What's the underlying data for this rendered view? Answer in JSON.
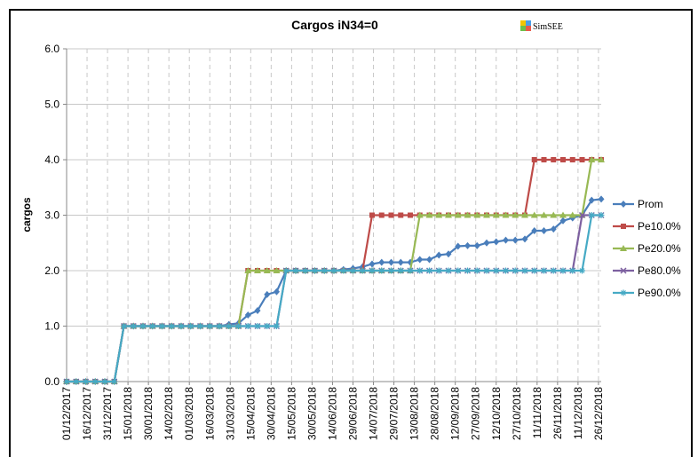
{
  "chart_data": {
    "type": "line",
    "title": "Cargos iN34=0",
    "logo": "SimSEE",
    "ylabel": "cargos",
    "x": [
      "01/12/2017",
      "08/12/2017",
      "15/12/2017",
      "22/12/2017",
      "29/12/2017",
      "05/01/2018",
      "12/01/2018",
      "19/01/2018",
      "26/01/2018",
      "02/02/2018",
      "09/02/2018",
      "16/02/2018",
      "23/02/2018",
      "02/03/2018",
      "09/03/2018",
      "16/03/2018",
      "23/03/2018",
      "30/03/2018",
      "06/04/2018",
      "13/04/2018",
      "20/04/2018",
      "27/04/2018",
      "04/05/2018",
      "11/05/2018",
      "18/05/2018",
      "25/05/2018",
      "01/06/2018",
      "08/06/2018",
      "15/06/2018",
      "22/06/2018",
      "29/06/2018",
      "06/07/2018",
      "13/07/2018",
      "20/07/2018",
      "27/07/2018",
      "03/08/2018",
      "10/08/2018",
      "17/08/2018",
      "24/08/2018",
      "31/08/2018",
      "07/09/2018",
      "14/09/2018",
      "21/09/2018",
      "28/09/2018",
      "05/10/2018",
      "12/10/2018",
      "19/10/2018",
      "26/10/2018",
      "02/11/2018",
      "09/11/2018",
      "16/11/2018",
      "23/11/2018",
      "30/11/2018",
      "07/12/2018",
      "14/12/2018",
      "21/12/2018",
      "28/12/2018"
    ],
    "series": [
      {
        "name": "Prom",
        "color": "#4a7ebb",
        "marker": "diamond",
        "values": [
          0,
          0,
          0,
          0,
          0,
          0,
          1,
          1,
          1,
          1,
          1,
          1,
          1,
          1,
          1,
          1,
          1,
          1.03,
          1.05,
          1.2,
          1.28,
          1.57,
          1.62,
          2,
          2,
          2,
          2,
          2,
          2,
          2.02,
          2.04,
          2.07,
          2.12,
          2.15,
          2.15,
          2.15,
          2.15,
          2.2,
          2.2,
          2.28,
          2.3,
          2.44,
          2.45,
          2.45,
          2.5,
          2.52,
          2.55,
          2.55,
          2.57,
          2.72,
          2.72,
          2.75,
          2.9,
          2.95,
          3,
          3.27,
          3.29
        ]
      },
      {
        "name": "Pe10.0%",
        "color": "#be4b48",
        "marker": "square",
        "values": [
          0,
          0,
          0,
          0,
          0,
          0,
          1,
          1,
          1,
          1,
          1,
          1,
          1,
          1,
          1,
          1,
          1,
          1,
          1,
          2,
          2,
          2,
          2,
          2,
          2,
          2,
          2,
          2,
          2,
          2,
          2,
          2,
          3,
          3,
          3,
          3,
          3,
          3,
          3,
          3,
          3,
          3,
          3,
          3,
          3,
          3,
          3,
          3,
          3,
          4,
          4,
          4,
          4,
          4,
          4,
          4,
          4
        ]
      },
      {
        "name": "Pe20.0%",
        "color": "#98b954",
        "marker": "triangle",
        "values": [
          0,
          0,
          0,
          0,
          0,
          0,
          1,
          1,
          1,
          1,
          1,
          1,
          1,
          1,
          1,
          1,
          1,
          1,
          1,
          2,
          2,
          2,
          2,
          2,
          2,
          2,
          2,
          2,
          2,
          2,
          2,
          2,
          2,
          2,
          2,
          2,
          2,
          3,
          3,
          3,
          3,
          3,
          3,
          3,
          3,
          3,
          3,
          3,
          3,
          3,
          3,
          3,
          3,
          3,
          3,
          4,
          4
        ]
      },
      {
        "name": "Pe80.0%",
        "color": "#7d60a0",
        "marker": "x",
        "values": [
          0,
          0,
          0,
          0,
          0,
          0,
          1,
          1,
          1,
          1,
          1,
          1,
          1,
          1,
          1,
          1,
          1,
          1,
          1,
          1,
          1,
          1,
          1,
          2,
          2,
          2,
          2,
          2,
          2,
          2,
          2,
          2,
          2,
          2,
          2,
          2,
          2,
          2,
          2,
          2,
          2,
          2,
          2,
          2,
          2,
          2,
          2,
          2,
          2,
          2,
          2,
          2,
          2,
          2,
          3,
          3,
          3
        ]
      },
      {
        "name": "Pe90.0%",
        "color": "#46aac5",
        "marker": "star",
        "values": [
          0,
          0,
          0,
          0,
          0,
          0,
          1,
          1,
          1,
          1,
          1,
          1,
          1,
          1,
          1,
          1,
          1,
          1,
          1,
          1,
          1,
          1,
          1,
          2,
          2,
          2,
          2,
          2,
          2,
          2,
          2,
          2,
          2,
          2,
          2,
          2,
          2,
          2,
          2,
          2,
          2,
          2,
          2,
          2,
          2,
          2,
          2,
          2,
          2,
          2,
          2,
          2,
          2,
          2,
          2,
          3,
          3
        ]
      }
    ],
    "xlim": [
      "01/12/2017",
      "28/12/2018"
    ],
    "xticks": [
      "01/12/2017",
      "16/12/2017",
      "31/12/2017",
      "15/01/2018",
      "30/01/2018",
      "14/02/2018",
      "01/03/2018",
      "16/03/2018",
      "31/03/2018",
      "15/04/2018",
      "30/04/2018",
      "15/05/2018",
      "30/05/2018",
      "14/06/2018",
      "29/06/2018",
      "14/07/2018",
      "29/07/2018",
      "13/08/2018",
      "28/08/2018",
      "12/09/2018",
      "27/09/2018",
      "12/10/2018",
      "27/10/2018",
      "11/11/2018",
      "26/11/2018",
      "11/12/2018",
      "26/12/2018"
    ],
    "ylim": [
      0,
      6
    ],
    "yticks": [
      {
        "value": 0,
        "label": "0.0"
      },
      {
        "value": 1,
        "label": "1.0"
      },
      {
        "value": 2,
        "label": "2.0"
      },
      {
        "value": 3,
        "label": "3.0"
      },
      {
        "value": 4,
        "label": "4.0"
      },
      {
        "value": 5,
        "label": "5.0"
      },
      {
        "value": 6,
        "label": "6.0"
      }
    ],
    "grid": true,
    "legend": "right"
  }
}
